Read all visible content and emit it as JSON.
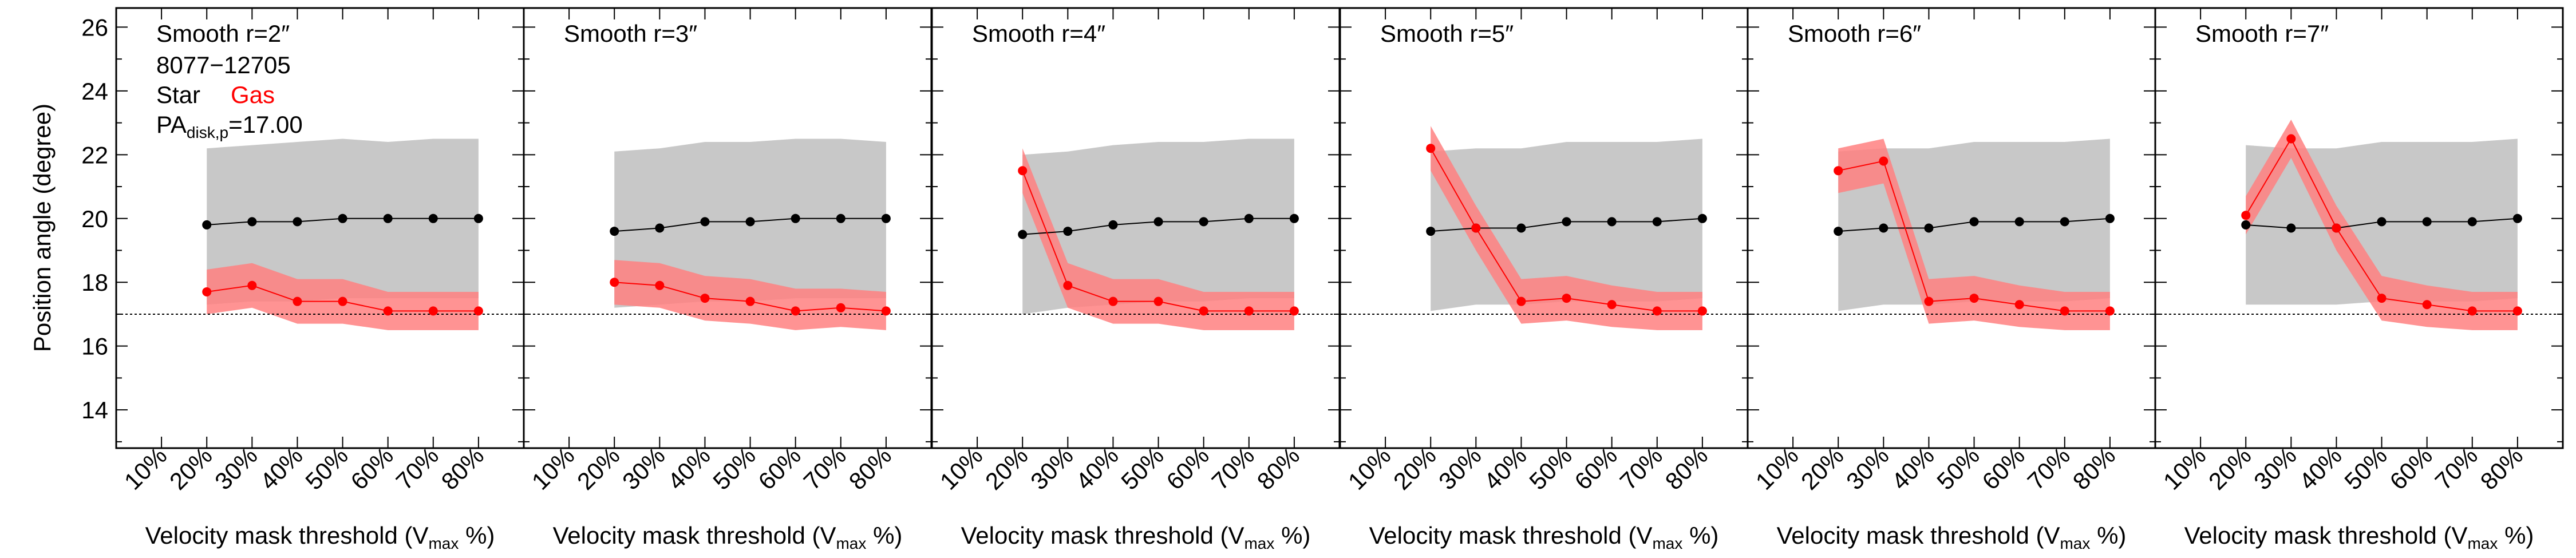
{
  "figure": {
    "ylabel": "Position angle (degree)",
    "xlabel": "Velocity mask threshold",
    "xlabel_symbol": "V",
    "xlabel_sub": "max",
    "xlabel_unit": "%)",
    "galaxy_id": "8077−12705",
    "legend_star": "Star",
    "legend_gas": "Gas",
    "pa_prefix": "PA",
    "pa_sub": "disk,p",
    "pa_value": "=17.00"
  },
  "chart_data": {
    "type": "line",
    "x_categories": [
      "10%",
      "20%",
      "30%",
      "40%",
      "50%",
      "60%",
      "70%",
      "80%"
    ],
    "ylim": [
      12.8,
      26.6
    ],
    "yticks": [
      14,
      16,
      18,
      20,
      22,
      24,
      26
    ],
    "reference_line": 17.0,
    "colors": {
      "star": "#000000",
      "gas": "#ff0000",
      "gas_band": "#ff8080",
      "star_band": "#c8c8c8"
    },
    "panels": [
      {
        "title": "Smooth r=2″",
        "star": [
          19.8,
          19.9,
          19.9,
          20.0,
          20.0,
          20.0,
          20.0
        ],
        "star_band_upper": [
          22.2,
          22.3,
          22.4,
          22.5,
          22.4,
          22.5,
          22.5
        ],
        "star_band_lower": [
          17.3,
          17.4,
          17.4,
          17.5,
          17.5,
          17.5,
          17.5
        ],
        "gas": [
          17.7,
          17.9,
          17.4,
          17.4,
          17.1,
          17.1,
          17.1
        ],
        "gas_band_upper": [
          18.4,
          18.6,
          18.1,
          18.1,
          17.7,
          17.7,
          17.7
        ],
        "gas_band_lower": [
          17.0,
          17.2,
          16.7,
          16.7,
          16.5,
          16.5,
          16.5
        ]
      },
      {
        "title": "Smooth r=3″",
        "star": [
          19.6,
          19.7,
          19.9,
          19.9,
          20.0,
          20.0,
          20.0
        ],
        "star_band_upper": [
          22.1,
          22.2,
          22.4,
          22.4,
          22.5,
          22.5,
          22.4
        ],
        "star_band_lower": [
          17.2,
          17.3,
          17.4,
          17.4,
          17.5,
          17.5,
          17.5
        ],
        "gas": [
          18.0,
          17.9,
          17.5,
          17.4,
          17.1,
          17.2,
          17.1
        ],
        "gas_band_upper": [
          18.7,
          18.6,
          18.2,
          18.1,
          17.8,
          17.8,
          17.7
        ],
        "gas_band_lower": [
          17.3,
          17.2,
          16.8,
          16.7,
          16.5,
          16.6,
          16.5
        ]
      },
      {
        "title": "Smooth r=4″",
        "star": [
          19.5,
          19.6,
          19.8,
          19.9,
          19.9,
          20.0,
          20.0
        ],
        "star_band_upper": [
          22.0,
          22.1,
          22.3,
          22.4,
          22.4,
          22.5,
          22.5
        ],
        "star_band_lower": [
          17.0,
          17.2,
          17.3,
          17.4,
          17.4,
          17.5,
          17.5
        ],
        "gas": [
          21.5,
          17.9,
          17.4,
          17.4,
          17.1,
          17.1,
          17.1
        ],
        "gas_band_upper": [
          22.2,
          18.6,
          18.1,
          18.1,
          17.7,
          17.7,
          17.7
        ],
        "gas_band_lower": [
          20.8,
          17.2,
          16.7,
          16.7,
          16.5,
          16.5,
          16.5
        ]
      },
      {
        "title": "Smooth r=5″",
        "star": [
          19.6,
          19.7,
          19.7,
          19.9,
          19.9,
          19.9,
          20.0
        ],
        "star_band_upper": [
          22.1,
          22.2,
          22.2,
          22.4,
          22.4,
          22.4,
          22.5
        ],
        "star_band_lower": [
          17.1,
          17.3,
          17.3,
          17.4,
          17.4,
          17.4,
          17.5
        ],
        "gas": [
          22.2,
          19.7,
          17.4,
          17.5,
          17.3,
          17.1,
          17.1
        ],
        "gas_band_upper": [
          22.9,
          20.4,
          18.1,
          18.2,
          17.9,
          17.7,
          17.7
        ],
        "gas_band_lower": [
          21.5,
          19.0,
          16.7,
          16.8,
          16.6,
          16.5,
          16.5
        ]
      },
      {
        "title": "Smooth r=6″",
        "star": [
          19.6,
          19.7,
          19.7,
          19.9,
          19.9,
          19.9,
          20.0
        ],
        "star_band_upper": [
          22.1,
          22.2,
          22.2,
          22.4,
          22.4,
          22.4,
          22.5
        ],
        "star_band_lower": [
          17.1,
          17.3,
          17.3,
          17.4,
          17.4,
          17.4,
          17.5
        ],
        "gas": [
          21.5,
          21.8,
          17.4,
          17.5,
          17.3,
          17.1,
          17.1
        ],
        "gas_band_upper": [
          22.2,
          22.5,
          18.1,
          18.2,
          17.9,
          17.7,
          17.7
        ],
        "gas_band_lower": [
          20.8,
          21.1,
          16.7,
          16.8,
          16.6,
          16.5,
          16.5
        ]
      },
      {
        "title": "Smooth r=7″",
        "star": [
          19.8,
          19.7,
          19.7,
          19.9,
          19.9,
          19.9,
          20.0
        ],
        "star_band_upper": [
          22.3,
          22.2,
          22.2,
          22.4,
          22.4,
          22.4,
          22.5
        ],
        "star_band_lower": [
          17.3,
          17.3,
          17.3,
          17.4,
          17.4,
          17.4,
          17.5
        ],
        "gas": [
          20.1,
          22.5,
          19.7,
          17.5,
          17.3,
          17.1,
          17.1
        ],
        "gas_band_upper": [
          20.7,
          23.1,
          20.4,
          18.2,
          17.9,
          17.7,
          17.7
        ],
        "gas_band_lower": [
          19.5,
          21.9,
          19.0,
          16.8,
          16.6,
          16.5,
          16.5
        ]
      }
    ]
  }
}
